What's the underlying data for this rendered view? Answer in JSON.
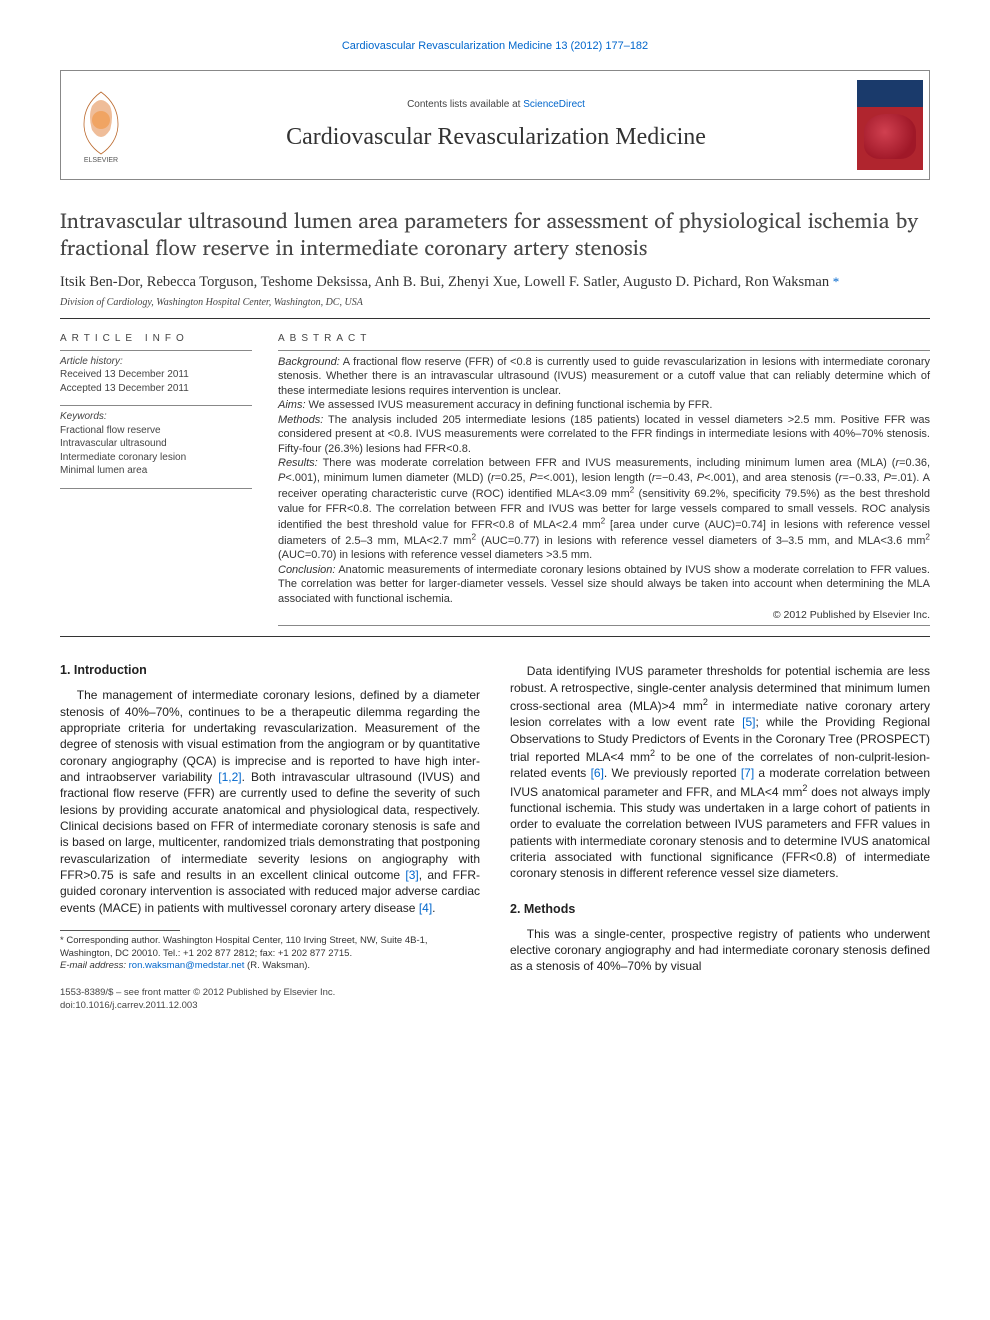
{
  "top_citation": "Cardiovascular Revascularization Medicine 13 (2012) 177–182",
  "header": {
    "contents_prefix": "Contents lists available at ",
    "contents_link": "ScienceDirect",
    "journal_name": "Cardiovascular Revascularization Medicine",
    "elsevier_label": "ELSEVIER",
    "cover_colors": {
      "top": "#1a3a6b",
      "bottom": "#b0252e"
    }
  },
  "title": "Intravascular ultrasound lumen area parameters for assessment of physiological ischemia by fractional flow reserve in intermediate coronary artery stenosis",
  "authors_line": "Itsik Ben-Dor, Rebecca Torguson, Teshome Deksissa, Anh B. Bui, Zhenyi Xue, Lowell F. Satler, Augusto D. Pichard, Ron Waksman",
  "corr_marker": "*",
  "affiliation": "Division of Cardiology, Washington Hospital Center, Washington, DC, USA",
  "info": {
    "heading": "article info",
    "history_label": "Article history:",
    "received": "Received 13 December 2011",
    "accepted": "Accepted 13 December 2011",
    "keywords_label": "Keywords:",
    "keywords": [
      "Fractional flow reserve",
      "Intravascular ultrasound",
      "Intermediate coronary lesion",
      "Minimal lumen area"
    ]
  },
  "abstract": {
    "heading": "abstract",
    "background_label": "Background:",
    "background": " A fractional flow reserve (FFR) of <0.8 is currently used to guide revascularization in lesions with intermediate coronary stenosis. Whether there is an intravascular ultrasound (IVUS) measurement or a cutoff value that can reliably determine which of these intermediate lesions requires intervention is unclear.",
    "aims_label": "Aims:",
    "aims": " We assessed IVUS measurement accuracy in defining functional ischemia by FFR.",
    "methods_label": "Methods:",
    "methods": " The analysis included 205 intermediate lesions (185 patients) located in vessel diameters >2.5 mm. Positive FFR was considered present at <0.8. IVUS measurements were correlated to the FFR findings in intermediate lesions with 40%–70% stenosis. Fifty-four (26.3%) lesions had FFR<0.8.",
    "results_label": "Results:",
    "results_html": " There was moderate correlation between FFR and IVUS measurements, including minimum lumen area (MLA) (<i>r</i>=0.36, <i>P</i>&lt;.001), minimum lumen diameter (MLD) (<i>r</i>=0.25, <i>P</i>=&lt;.001), lesion length (<i>r</i>=−0.43, <i>P</i>&lt;.001), and area stenosis (<i>r</i>=−0.33, <i>P</i>=.01). A receiver operating characteristic curve (ROC) identified MLA&lt;3.09 mm<sup>2</sup> (sensitivity 69.2%, specificity 79.5%) as the best threshold value for FFR&lt;0.8. The correlation between FFR and IVUS was better for large vessels compared to small vessels. ROC analysis identified the best threshold value for FFR&lt;0.8 of MLA&lt;2.4 mm<sup>2</sup> [area under curve (AUC)=0.74] in lesions with reference vessel diameters of 2.5–3 mm, MLA&lt;2.7 mm<sup>2</sup> (AUC=0.77) in lesions with reference vessel diameters of 3–3.5 mm, and MLA&lt;3.6 mm<sup>2</sup> (AUC=0.70) in lesions with reference vessel diameters &gt;3.5 mm.",
    "conclusion_label": "Conclusion:",
    "conclusion": " Anatomic measurements of intermediate coronary lesions obtained by IVUS show a moderate correlation to FFR values. The correlation was better for larger-diameter vessels. Vessel size should always be taken into account when determining the MLA associated with functional ischemia.",
    "copyright": "© 2012 Published by Elsevier Inc."
  },
  "sections": {
    "intro_heading": "1. Introduction",
    "intro_p1_html": "The management of intermediate coronary lesions, defined by a diameter stenosis of 40%–70%, continues to be a therapeutic dilemma regarding the appropriate criteria for undertaking revascularization. Measurement of the degree of stenosis with visual estimation from the angiogram or by quantitative coronary angiography (QCA) is imprecise and is reported to have high inter- and intraobserver variability <span class=\"ref\">[1,2]</span>. Both intravascular ultrasound (IVUS) and fractional flow reserve (FFR) are currently used to define the severity of such lesions by providing accurate anatomical and physiological data, respectively. Clinical decisions based on FFR of intermediate coronary stenosis is safe and is based on large, multicenter, randomized trials demonstrating that postponing revascularization of intermediate severity lesions on angiography with FFR&gt;0.75 is safe and results in an excellent clinical outcome <span class=\"ref\">[3]</span>, and FFR-guided coronary intervention is associated with reduced major adverse cardiac events (MACE) in patients with multivessel coronary artery disease <span class=\"ref\">[4]</span>.",
    "intro_p2_html": "Data identifying IVUS parameter thresholds for potential ischemia are less robust. A retrospective, single-center analysis determined that minimum lumen cross-sectional area (MLA)&gt;4 mm<sup>2</sup> in intermediate native coronary artery lesion correlates with a low event rate <span class=\"ref\">[5]</span>; while the Providing Regional Observations to Study Predictors of Events in the Coronary Tree (PROSPECT) trial reported MLA&lt;4 mm<sup>2</sup> to be one of the correlates of non-culprit-lesion-related events <span class=\"ref\">[6]</span>. We previously reported <span class=\"ref\">[7]</span> a moderate correlation between IVUS anatomical parameter and FFR, and MLA&lt;4 mm<sup>2</sup> does not always imply functional ischemia. This study was undertaken in a large cohort of patients in order to evaluate the correlation between IVUS parameters and FFR values in patients with intermediate coronary stenosis and to determine IVUS anatomical criteria associated with functional significance (FFR&lt;0.8) of intermediate coronary stenosis in different reference vessel size diameters.",
    "methods_heading": "2. Methods",
    "methods_p1": "This was a single-center, prospective registry of patients who underwent elective coronary angiography and had intermediate coronary stenosis defined as a stenosis of 40%–70% by visual"
  },
  "footnote": {
    "corr": "* Corresponding author. Washington Hospital Center, 110 Irving Street, NW, Suite 4B-1, Washington, DC 20010. Tel.: +1 202 877 2812; fax: +1 202 877 2715.",
    "email_label": "E-mail address:",
    "email": "ron.waksman@medstar.net",
    "email_suffix": " (R. Waksman)."
  },
  "bottom": {
    "front_matter": "1553-8389/$ – see front matter © 2012 Published by Elsevier Inc.",
    "doi": "doi:10.1016/j.carrev.2011.12.003"
  },
  "colors": {
    "link": "#0066cc",
    "text": "#222222",
    "muted": "#444444",
    "rule": "#333333"
  }
}
